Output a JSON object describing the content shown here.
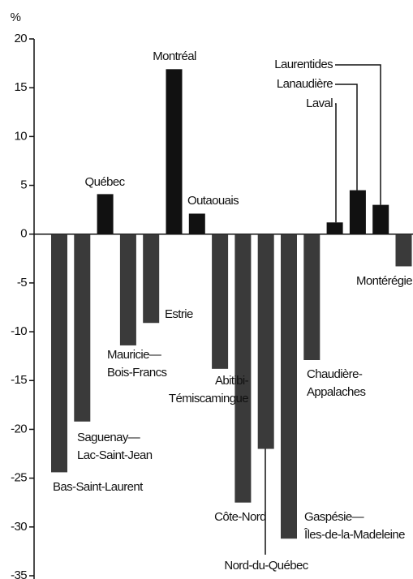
{
  "chart_data": {
    "type": "bar",
    "y_label": "%",
    "categories": [
      "Bas-Saint-Laurent",
      "Saguenay—\nLac-Saint-Jean",
      "Québec",
      "Mauricie—\nBois-Francs",
      "Estrie",
      "Montréal",
      "Outaouais",
      "Abitibi-\nTémiscamingue",
      "Côte-Nord",
      "Nord-du-Québec",
      "Gaspésie—\nÎles-de-la-Madeleine",
      "Chaudière-\nAppalaches",
      "Laval",
      "Lanaudière",
      "Laurentides",
      "Montérégie"
    ],
    "values": [
      -24.4,
      -19.2,
      4.1,
      -11.4,
      -9.1,
      16.9,
      2.1,
      -13.8,
      -27.5,
      -22,
      -31.2,
      -12.9,
      1.2,
      4.5,
      3.0,
      -3.3
    ],
    "positive_color": "#111111",
    "negative_color": "#3a3a3a",
    "ylim": [
      -35,
      20
    ],
    "yticks": [
      20,
      15,
      10,
      5,
      0,
      -5,
      -10,
      -15,
      -20,
      -25,
      -30,
      -35
    ]
  }
}
